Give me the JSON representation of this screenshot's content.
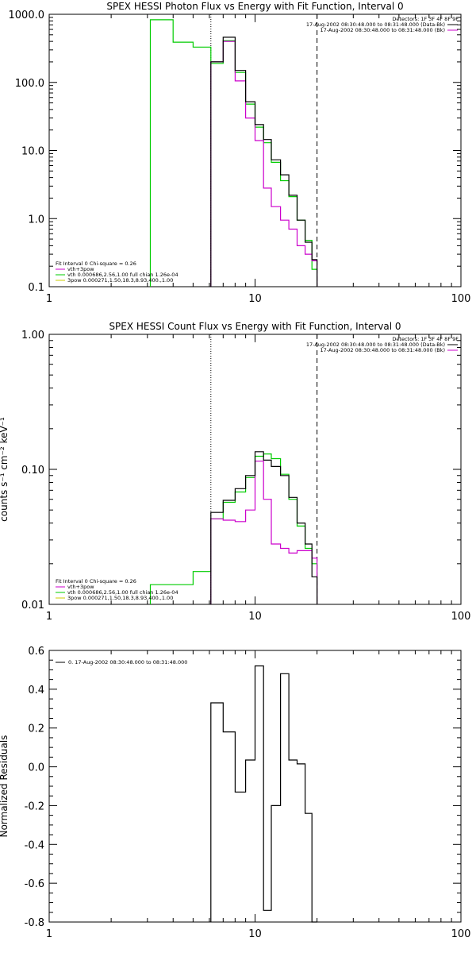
{
  "colors": {
    "observed": "#000000",
    "total_fit": "#cc00cc",
    "thermal": "#00cc00",
    "power_law": "#cccc00",
    "background": "#ffffff"
  },
  "chart_data": [
    {
      "type": "line",
      "title": "SPEX HESSI Photon Flux vs Energy with Fit Function, Interval 0",
      "xlabel": "",
      "ylabel": "",
      "xscale": "log",
      "yscale": "log",
      "xlim": [
        1,
        100
      ],
      "ylim": [
        0.1,
        1000
      ],
      "xtick_labels": [
        "1",
        "10",
        "100"
      ],
      "ytick_labels": [
        "0.1",
        "1.0",
        "10.0",
        "100.0",
        "1000.0"
      ],
      "info": [
        "Detectors: 1F 3F 4F 8F 9F",
        "17-Aug-2002 08:30:48.000 to 08:31:48.000 (Data-Bk)",
        "17-Aug-2002 08:30:48.000 to 08:31:48.000 (Bk)"
      ],
      "legend": [
        "Fit Interval 0   Chi-square = 0.26",
        "vth+3pow",
        "vth 0.000686,2.56,1.00  full chian 1.26e-04",
        "3pow 0.000271,1.50,18.3,8.93,400.,1.00"
      ],
      "fit_range": [
        6.1,
        20
      ],
      "series": [
        {
          "name": "17-Aug-2002 08:30:48.000 to 08:31:48.000 (Data-Bk)",
          "color": "#000000",
          "edges": [
            6.1,
            7,
            8,
            9,
            10,
            11,
            12,
            13.3,
            14.6,
            16,
            17.5,
            18.9,
            20
          ],
          "values": [
            200,
            460,
            150,
            52,
            24,
            14.5,
            7.3,
            4.4,
            2.2,
            0.95,
            0.45,
            0.25
          ]
        },
        {
          "name": "vth+3pow",
          "color": "#cc00cc",
          "edges": [
            6.1,
            7,
            8,
            9,
            10,
            11,
            12,
            13.3,
            14.6,
            16,
            17.5,
            18.9,
            20
          ],
          "values": [
            200,
            400,
            105,
            30,
            14,
            2.8,
            1.5,
            0.95,
            0.7,
            0.4,
            0.3,
            0.24
          ]
        },
        {
          "name": "vth 0.000686,2.56,1.00  full chian 1.26e-04",
          "color": "#00cc00",
          "edges": [
            3.1,
            4,
            5,
            6.1,
            7,
            8,
            9,
            10,
            11,
            12,
            13.3,
            14.6,
            16,
            17.5,
            18.9,
            20
          ],
          "values": [
            830,
            390,
            330,
            190,
            410,
            140,
            48,
            22,
            13,
            6.7,
            3.6,
            2.1,
            0.95,
            0.48,
            0.18
          ]
        }
      ]
    },
    {
      "type": "line",
      "title": "SPEX HESSI Count Flux vs Energy with Fit Function, Interval 0",
      "xlabel": "",
      "ylabel": "counts s⁻¹ cm⁻² keV⁻¹",
      "xscale": "log",
      "yscale": "log",
      "xlim": [
        1,
        100
      ],
      "ylim": [
        0.01,
        1.0
      ],
      "xtick_labels": [
        "1",
        "10",
        "100"
      ],
      "ytick_labels": [
        "0.01",
        "0.10",
        "1.00"
      ],
      "info": [
        "Detectors: 1F 3F 4F 8F 9F",
        "17-Aug-2002 08:30:48.000 to 08:31:48.000 (Data-Bk)",
        "17-Aug-2002 08:30:48.000 to 08:31:48.000 (Bk)"
      ],
      "legend": [
        "Fit Interval 0   Chi-square = 0.26",
        "vth+3pow",
        "vth 0.000686,2.56,1.00  full chian 1.26e-04",
        "3pow 0.000271,1.50,18.3,8.93,400.,1.00"
      ],
      "fit_range": [
        6.1,
        20
      ],
      "series": [
        {
          "name": "17-Aug-2002 08:30:48.000 to 08:31:48.000 (Data-Bk)",
          "color": "#000000",
          "edges": [
            6.1,
            7,
            8,
            9,
            10,
            11,
            12,
            13.3,
            14.6,
            16,
            17.5,
            18.9,
            20
          ],
          "values": [
            0.048,
            0.059,
            0.072,
            0.09,
            0.135,
            0.117,
            0.105,
            0.09,
            0.062,
            0.04,
            0.028,
            0.016
          ]
        },
        {
          "name": "vth+3pow",
          "color": "#cc00cc",
          "edges": [
            6.1,
            7,
            8,
            9,
            10,
            11,
            12,
            13.3,
            14.6,
            16,
            17.5,
            18.9,
            20
          ],
          "values": [
            0.043,
            0.042,
            0.041,
            0.05,
            0.115,
            0.06,
            0.028,
            0.026,
            0.024,
            0.025,
            0.025,
            0.022
          ]
        },
        {
          "name": "vth 0.000686,2.56,1.00  full chian 1.26e-04",
          "color": "#00cc00",
          "edges": [
            3.1,
            5,
            6.1,
            7,
            8,
            9,
            10,
            11,
            12,
            13.3,
            14.6,
            16,
            17.5,
            18.9,
            20
          ],
          "values": [
            0.014,
            0.0175,
            0.043,
            0.057,
            0.068,
            0.087,
            0.125,
            0.13,
            0.12,
            0.092,
            0.06,
            0.038,
            0.026,
            0.02
          ]
        }
      ]
    },
    {
      "type": "line",
      "title": "",
      "xlabel": "",
      "ylabel": "Normalized Residuals",
      "xscale": "log",
      "yscale": "linear",
      "xlim": [
        1,
        100
      ],
      "ylim": [
        -0.8,
        0.6
      ],
      "xtick_labels": [
        "1",
        "10",
        "100"
      ],
      "ytick_labels": [
        "-0.8",
        "-0.6",
        "-0.4",
        "-0.2",
        "0.0",
        "0.2",
        "0.4",
        "0.6"
      ],
      "legend": [
        "0. 17-Aug-2002 08:30:48.000 to 08:31:48.000"
      ],
      "series": [
        {
          "name": "0. 17-Aug-2002 08:30:48.000 to 08:31:48.000",
          "color": "#000000",
          "edges": [
            6.1,
            7,
            8,
            9,
            10,
            11,
            12,
            13.3,
            14.6,
            16,
            17.5,
            18.9,
            20
          ],
          "values": [
            0.33,
            0.18,
            -0.13,
            0.035,
            0.52,
            -0.74,
            -0.2,
            0.48,
            0.035,
            0.015,
            -0.24,
            -0.8
          ]
        }
      ]
    }
  ]
}
